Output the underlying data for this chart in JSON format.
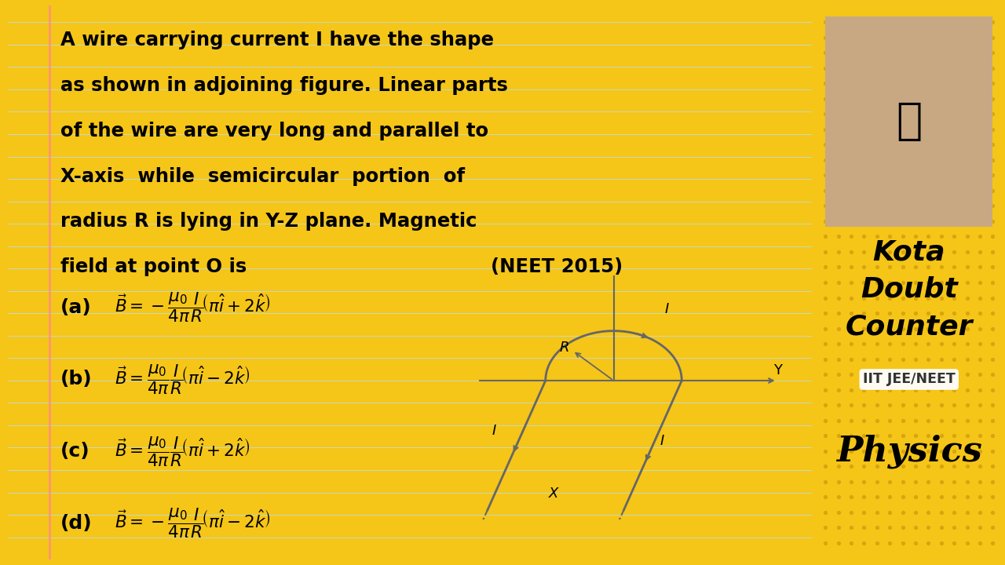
{
  "bg_color": "#F5C518",
  "panel_color": "#FFFFFF",
  "line_colors": "#ADD8E6",
  "margin_line_color": "#FF9999",
  "text_color": "#000000",
  "wire_color": "#666666",
  "title_lines": [
    "A wire carrying current I have the shape",
    "as shown in adjoining figure. Linear parts",
    "of the wire are very long and parallel to",
    "X-axis  while  semicircular  portion  of",
    "radius R is lying in Y-Z plane. Magnetic",
    "field at point O is"
  ],
  "neet_text": "(NEET 2015)",
  "opt_labels": [
    "(a)",
    "(b)",
    "(c)",
    "(d)"
  ],
  "opt_signs": [
    "-",
    "",
    "",
    "-"
  ],
  "opt_sign2": [
    "+",
    "-",
    "+",
    "-"
  ],
  "kota_lines": [
    "Kota",
    "Doubt",
    "Counter"
  ],
  "subtitle": "IIT JEE/NEET",
  "physics": "Physics",
  "dot_color": "#D4A800",
  "right_bg": "#F5C518"
}
